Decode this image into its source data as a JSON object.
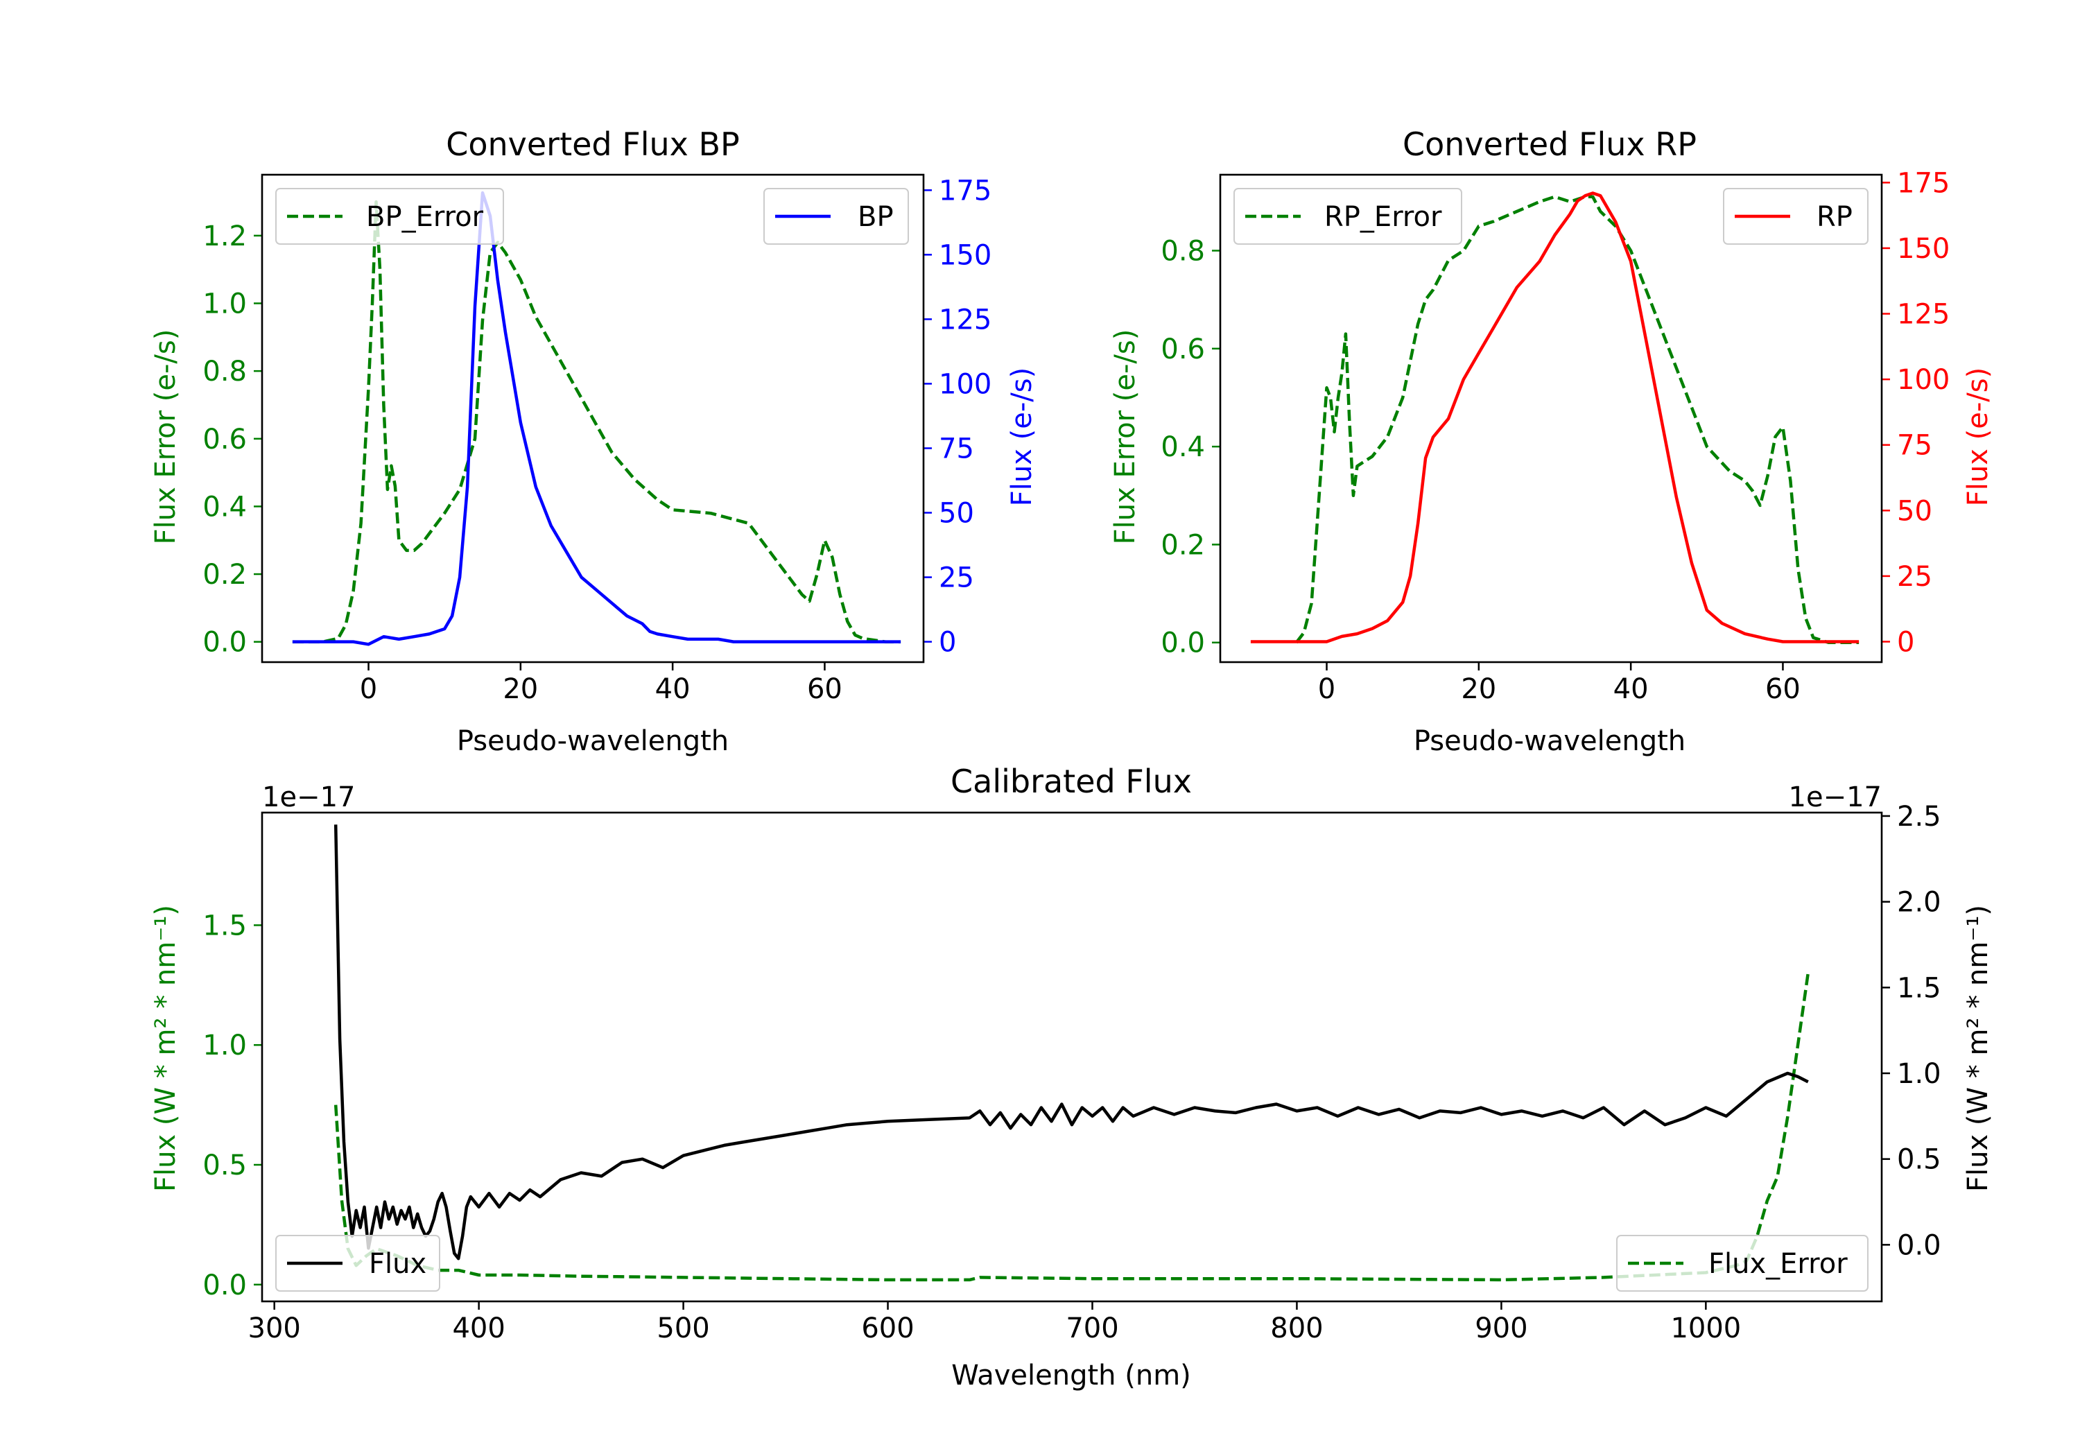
{
  "colors": {
    "bp": "#0000ff",
    "rp": "#ff0000",
    "error": "#008000",
    "flux": "#000000",
    "axis": "#000000"
  },
  "chart_data": [
    {
      "id": "bp",
      "type": "line",
      "title": "Converted Flux BP",
      "xlabel": "Pseudo-wavelength",
      "ylabel_left": "Flux Error (e-/s)",
      "ylabel_right": "Flux (e-/s)",
      "xlim": [
        -14,
        73
      ],
      "ylim_left": [
        -0.06,
        1.38
      ],
      "ylim_right": [
        -7.9,
        181
      ],
      "xticks": [
        0,
        20,
        40,
        60
      ],
      "yticks_left": [
        0.0,
        0.2,
        0.4,
        0.6,
        0.8,
        1.0,
        1.2
      ],
      "yticks_right": [
        0,
        25,
        50,
        75,
        100,
        125,
        150,
        175
      ],
      "left_tick_color": "error",
      "right_tick_color": "bp",
      "legend_left": "BP_Error",
      "legend_right": "BP",
      "series": [
        {
          "name": "BP_Error",
          "axis": "left",
          "style": "dashed",
          "color": "error",
          "x": [
            -10,
            -6,
            -4,
            -3,
            -2,
            -1,
            0,
            0.5,
            1,
            1.5,
            2,
            2.5,
            3,
            3.5,
            4,
            5,
            6,
            7,
            8,
            10,
            12,
            14,
            15,
            16,
            17,
            18,
            20,
            22,
            25,
            28,
            30,
            32,
            35,
            38,
            40,
            45,
            50,
            53,
            56,
            57,
            58,
            59,
            60,
            61,
            62,
            63,
            64,
            65,
            68,
            70
          ],
          "y": [
            0.0,
            0.0,
            0.01,
            0.05,
            0.15,
            0.35,
            0.75,
            1.0,
            1.3,
            1.1,
            0.7,
            0.45,
            0.52,
            0.46,
            0.3,
            0.27,
            0.27,
            0.29,
            0.32,
            0.38,
            0.45,
            0.6,
            0.95,
            1.15,
            1.18,
            1.15,
            1.07,
            0.96,
            0.84,
            0.72,
            0.64,
            0.56,
            0.48,
            0.42,
            0.39,
            0.38,
            0.35,
            0.26,
            0.17,
            0.14,
            0.12,
            0.2,
            0.3,
            0.25,
            0.14,
            0.06,
            0.02,
            0.01,
            0.0,
            0.0
          ]
        },
        {
          "name": "BP",
          "axis": "right",
          "style": "solid",
          "color": "bp",
          "x": [
            -10,
            -8,
            -6,
            -4,
            -2,
            0,
            2,
            4,
            6,
            8,
            10,
            11,
            12,
            13,
            14,
            15,
            16,
            17,
            18,
            20,
            22,
            24,
            26,
            28,
            30,
            32,
            34,
            36,
            37,
            38,
            40,
            42,
            44,
            46,
            48,
            50,
            55,
            60,
            65,
            70
          ],
          "y": [
            0,
            0,
            0,
            0,
            0,
            -1,
            2,
            1,
            2,
            3,
            5,
            10,
            25,
            60,
            130,
            174,
            165,
            140,
            120,
            85,
            60,
            45,
            35,
            25,
            20,
            15,
            10,
            7,
            4,
            3,
            2,
            1,
            1,
            1,
            0,
            0,
            0,
            0,
            0,
            0
          ]
        }
      ]
    },
    {
      "id": "rp",
      "type": "line",
      "title": "Converted Flux RP",
      "xlabel": "Pseudo-wavelength",
      "ylabel_left": "Flux Error (e-/s)",
      "ylabel_right": "Flux (e-/s)",
      "xlim": [
        -14,
        73
      ],
      "ylim_left": [
        -0.04,
        0.955
      ],
      "ylim_right": [
        -7.8,
        178
      ],
      "xticks": [
        0,
        20,
        40,
        60
      ],
      "yticks_left": [
        0.0,
        0.2,
        0.4,
        0.6,
        0.8
      ],
      "yticks_right": [
        0,
        25,
        50,
        75,
        100,
        125,
        150,
        175
      ],
      "left_tick_color": "error",
      "right_tick_color": "rp",
      "legend_left": "RP_Error",
      "legend_right": "RP",
      "series": [
        {
          "name": "RP_Error",
          "axis": "left",
          "style": "dashed",
          "color": "error",
          "x": [
            -4,
            -3,
            -2,
            -1,
            0,
            0.5,
            1,
            1.5,
            2,
            2.5,
            3,
            3.5,
            4,
            5,
            6,
            8,
            10,
            12,
            13,
            14,
            16,
            18,
            20,
            22,
            25,
            28,
            30,
            32,
            34,
            35,
            36,
            38,
            40,
            42,
            45,
            48,
            50,
            53,
            55,
            56,
            57,
            58,
            59,
            60,
            61,
            62,
            63,
            64,
            66,
            70
          ],
          "y": [
            0.0,
            0.02,
            0.08,
            0.3,
            0.52,
            0.5,
            0.43,
            0.5,
            0.55,
            0.63,
            0.45,
            0.3,
            0.36,
            0.37,
            0.38,
            0.42,
            0.5,
            0.65,
            0.7,
            0.72,
            0.78,
            0.8,
            0.85,
            0.86,
            0.88,
            0.9,
            0.91,
            0.9,
            0.91,
            0.91,
            0.88,
            0.85,
            0.8,
            0.72,
            0.6,
            0.48,
            0.4,
            0.35,
            0.33,
            0.31,
            0.28,
            0.34,
            0.42,
            0.44,
            0.33,
            0.15,
            0.05,
            0.01,
            0.0,
            0.0
          ]
        },
        {
          "name": "RP",
          "axis": "right",
          "style": "solid",
          "color": "rp",
          "x": [
            -10,
            -6,
            -4,
            -2,
            0,
            2,
            4,
            6,
            8,
            10,
            11,
            12,
            13,
            14,
            16,
            18,
            20,
            22,
            25,
            28,
            30,
            32,
            33,
            34,
            35,
            36,
            38,
            40,
            42,
            44,
            46,
            48,
            50,
            52,
            55,
            58,
            60,
            65,
            70
          ],
          "y": [
            0,
            0,
            0,
            0,
            0,
            2,
            3,
            5,
            8,
            15,
            25,
            45,
            70,
            78,
            85,
            100,
            110,
            120,
            135,
            145,
            155,
            163,
            168,
            170,
            171,
            170,
            160,
            145,
            115,
            85,
            55,
            30,
            12,
            7,
            3,
            1,
            0,
            0,
            0
          ]
        }
      ]
    },
    {
      "id": "cal",
      "type": "line",
      "title": "Calibrated Flux",
      "xlabel": "Wavelength (nm)",
      "ylabel_left": "Flux (W * m² * nm⁻¹)",
      "ylabel_right": "Flux (W * m² * nm⁻¹)",
      "offset_left": "1e−17",
      "offset_right": "1e−17",
      "xlim": [
        294,
        1086
      ],
      "ylim_left": [
        -0.07,
        1.97
      ],
      "ylim_right": [
        -0.33,
        2.52
      ],
      "xticks": [
        300,
        400,
        500,
        600,
        700,
        800,
        900,
        1000
      ],
      "yticks_left": [
        0.0,
        0.5,
        1.0,
        1.5
      ],
      "yticks_right": [
        0.0,
        0.5,
        1.0,
        1.5,
        2.0,
        2.5
      ],
      "left_tick_color": "error",
      "right_tick_color": "flux",
      "legend_left": "Flux",
      "legend_right": "Flux_Error",
      "series": [
        {
          "name": "Flux_Error",
          "axis": "left",
          "style": "dashed",
          "color": "error",
          "x": [
            330,
            333,
            336,
            340,
            345,
            350,
            360,
            370,
            380,
            390,
            400,
            420,
            450,
            500,
            550,
            600,
            640,
            645,
            700,
            800,
            900,
            950,
            1000,
            1015,
            1020,
            1025,
            1030,
            1035,
            1040,
            1045,
            1050
          ],
          "y": [
            0.75,
            0.35,
            0.15,
            0.08,
            0.12,
            0.15,
            0.12,
            0.08,
            0.06,
            0.06,
            0.04,
            0.04,
            0.035,
            0.03,
            0.025,
            0.02,
            0.02,
            0.03,
            0.025,
            0.025,
            0.02,
            0.03,
            0.05,
            0.08,
            0.1,
            0.2,
            0.35,
            0.45,
            0.7,
            1.0,
            1.3
          ]
        },
        {
          "name": "Flux",
          "axis": "right",
          "style": "solid",
          "color": "flux",
          "x": [
            330,
            332,
            334,
            336,
            338,
            340,
            342,
            344,
            346,
            348,
            350,
            352,
            354,
            356,
            358,
            360,
            362,
            364,
            366,
            368,
            370,
            372,
            374,
            376,
            378,
            380,
            382,
            384,
            386,
            388,
            390,
            392,
            394,
            396,
            400,
            405,
            410,
            415,
            420,
            425,
            430,
            440,
            450,
            460,
            470,
            480,
            490,
            500,
            510,
            520,
            530,
            540,
            550,
            560,
            570,
            580,
            590,
            600,
            620,
            640,
            645,
            650,
            655,
            660,
            665,
            670,
            675,
            680,
            685,
            690,
            695,
            700,
            705,
            710,
            715,
            720,
            730,
            740,
            750,
            760,
            770,
            780,
            790,
            800,
            810,
            820,
            830,
            840,
            850,
            860,
            870,
            880,
            890,
            900,
            910,
            920,
            930,
            940,
            950,
            960,
            970,
            980,
            990,
            1000,
            1010,
            1020,
            1030,
            1040,
            1045,
            1050
          ],
          "y": [
            2.45,
            1.2,
            0.6,
            0.25,
            0.05,
            0.2,
            0.1,
            0.22,
            -0.02,
            0.1,
            0.22,
            0.1,
            0.25,
            0.15,
            0.22,
            0.12,
            0.2,
            0.15,
            0.22,
            0.1,
            0.18,
            0.1,
            0.05,
            0.08,
            0.15,
            0.25,
            0.3,
            0.22,
            0.08,
            -0.05,
            -0.08,
            0.05,
            0.22,
            0.28,
            0.22,
            0.3,
            0.22,
            0.3,
            0.26,
            0.32,
            0.28,
            0.38,
            0.42,
            0.4,
            0.48,
            0.5,
            0.45,
            0.52,
            0.55,
            0.58,
            0.6,
            0.62,
            0.64,
            0.66,
            0.68,
            0.7,
            0.71,
            0.72,
            0.73,
            0.74,
            0.78,
            0.7,
            0.77,
            0.68,
            0.76,
            0.7,
            0.8,
            0.72,
            0.82,
            0.7,
            0.8,
            0.75,
            0.8,
            0.72,
            0.8,
            0.75,
            0.8,
            0.76,
            0.8,
            0.78,
            0.77,
            0.8,
            0.82,
            0.78,
            0.8,
            0.75,
            0.8,
            0.76,
            0.79,
            0.74,
            0.78,
            0.77,
            0.8,
            0.76,
            0.78,
            0.75,
            0.78,
            0.74,
            0.8,
            0.7,
            0.78,
            0.7,
            0.74,
            0.8,
            0.75,
            0.85,
            0.95,
            1.0,
            0.98,
            0.95
          ]
        }
      ]
    }
  ]
}
